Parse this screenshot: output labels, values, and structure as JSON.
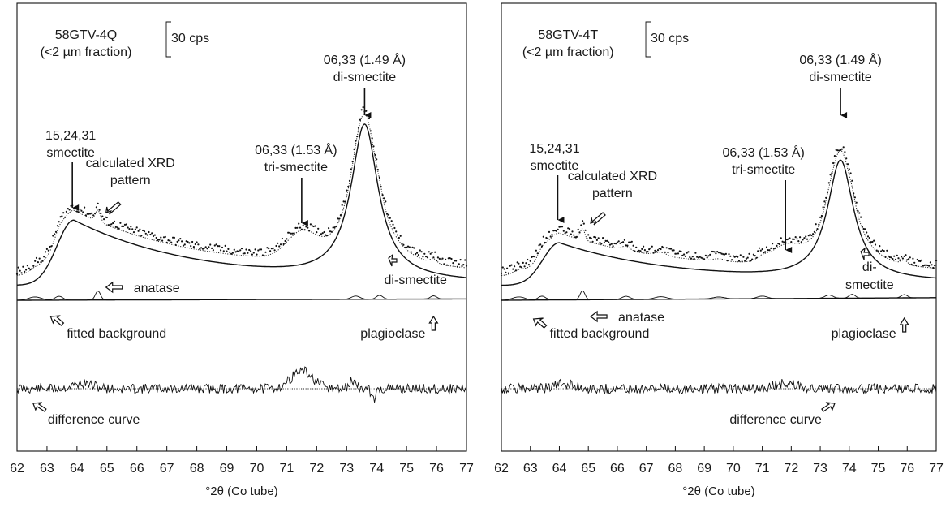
{
  "chart_data": [
    {
      "type": "line",
      "sample": "58GTV-4Q",
      "fraction": "(<2 µm fraction)",
      "scale_bar": "30 cps",
      "xlabel": "°2θ (Co tube)",
      "xlim": [
        62,
        77
      ],
      "x_ticks": [
        "62",
        "63",
        "64",
        "65",
        "66",
        "67",
        "68",
        "69",
        "70",
        "71",
        "72",
        "73",
        "74",
        "75",
        "76",
        "77"
      ],
      "annotations": {
        "di_peak": [
          "06,33 (1.49 Å)",
          "di-smectite"
        ],
        "tri_peak": [
          "06,33 (1.53 Å)",
          "tri-smectite"
        ],
        "smectite": [
          "15,24,31",
          "smectite"
        ],
        "calc": [
          "calculated XRD",
          "pattern"
        ],
        "di_component": [
          "di-smectite"
        ],
        "anatase": "anatase",
        "background": "fitted background",
        "plagioclase": "plagioclase",
        "difference": "difference curve"
      },
      "peaks": {
        "di_smectite_2theta": 73.6,
        "tri_smectite_2theta": 71.5,
        "smectite_2theta": 63.9,
        "anatase_2theta": 64.7
      }
    },
    {
      "type": "line",
      "sample": "58GTV-4T",
      "fraction": "(<2 µm fraction)",
      "scale_bar": "30 cps",
      "xlabel": "°2θ (Co tube)",
      "xlim": [
        62,
        77
      ],
      "x_ticks": [
        "62",
        "63",
        "64",
        "65",
        "66",
        "67",
        "68",
        "69",
        "70",
        "71",
        "72",
        "73",
        "74",
        "75",
        "76",
        "77"
      ],
      "annotations": {
        "di_peak": [
          "06,33 (1.49 Å)",
          "di-smectite"
        ],
        "tri_peak": [
          "06,33 (1.53 Å)",
          "tri-smectite"
        ],
        "smectite": [
          "15,24,31",
          "smectite"
        ],
        "calc": [
          "calculated XRD",
          "pattern"
        ],
        "di_component": [
          "di-",
          "smectite"
        ],
        "anatase": "anatase",
        "background": "fitted background",
        "plagioclase": "plagioclase",
        "difference": "difference curve"
      },
      "peaks": {
        "di_smectite_2theta": 73.7,
        "tri_smectite_2theta": 71.8,
        "smectite_2theta": 64.0,
        "anatase_2theta": 64.8
      }
    }
  ]
}
